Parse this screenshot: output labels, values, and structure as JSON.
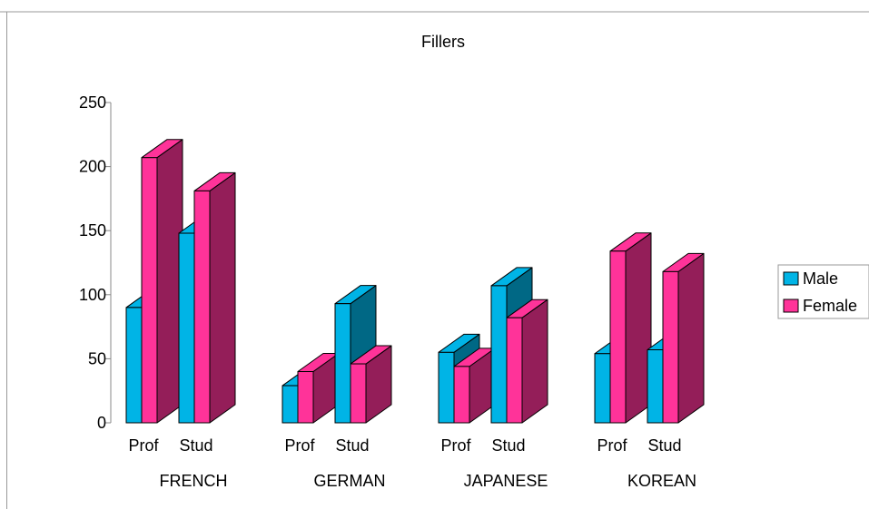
{
  "chart_data": {
    "type": "bar",
    "title": "Fillers",
    "xlabel": "",
    "ylabel": "",
    "ylim": [
      0,
      250
    ],
    "yticks": [
      "0",
      "50",
      "100",
      "150",
      "200",
      "250"
    ],
    "grid": false,
    "legend_position": "right",
    "groups": [
      "FRENCH",
      "GERMAN",
      "JAPANESE",
      "KOREAN"
    ],
    "subcategories": [
      "Prof",
      "Stud"
    ],
    "series": [
      {
        "name": "Male",
        "color": "#00b4e6",
        "values": [
          [
            90,
            148
          ],
          [
            29,
            93
          ],
          [
            55,
            107
          ],
          [
            54,
            57
          ]
        ]
      },
      {
        "name": "Female",
        "color": "#ff3399",
        "values": [
          [
            207,
            181
          ],
          [
            40,
            46
          ],
          [
            44,
            82
          ],
          [
            134,
            118
          ]
        ]
      }
    ]
  }
}
